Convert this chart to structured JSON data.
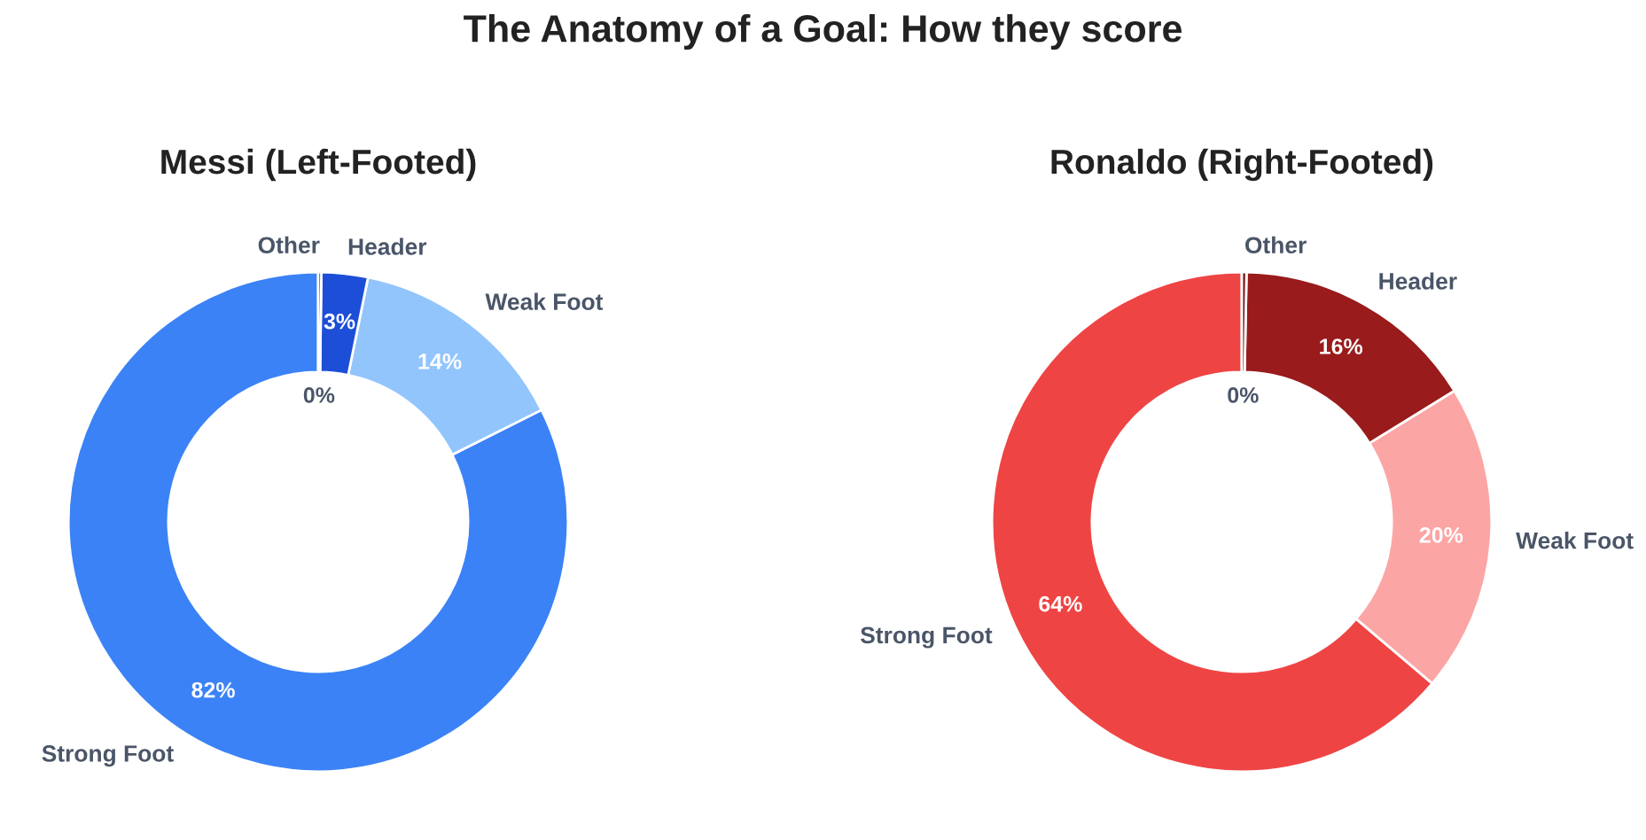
{
  "chart_data": [
    {
      "type": "donut",
      "title": "The Anatomy of a Goal: How they score",
      "subtitle": "Messi (Left-Footed)",
      "categories": [
        "Strong Foot",
        "Weak Foot",
        "Header",
        "Other"
      ],
      "values": [
        82.4,
        14.4,
        3.0,
        0.2
      ],
      "value_labels": [
        "82%",
        "14%",
        "3%",
        "0%"
      ],
      "colors": [
        "#3b82f6",
        "#93c5fd",
        "#1d4ed8",
        "#1e3a8a"
      ]
    },
    {
      "type": "donut",
      "subtitle": "Ronaldo (Right-Footed)",
      "categories": [
        "Strong Foot",
        "Weak Foot",
        "Header",
        "Other"
      ],
      "values": [
        63.8,
        20.0,
        15.9,
        0.3
      ],
      "value_labels": [
        "64%",
        "20%",
        "16%",
        "0%"
      ],
      "colors": [
        "#ef4444",
        "#fca5a5",
        "#991b1b",
        "#7f1d1d"
      ]
    }
  ]
}
